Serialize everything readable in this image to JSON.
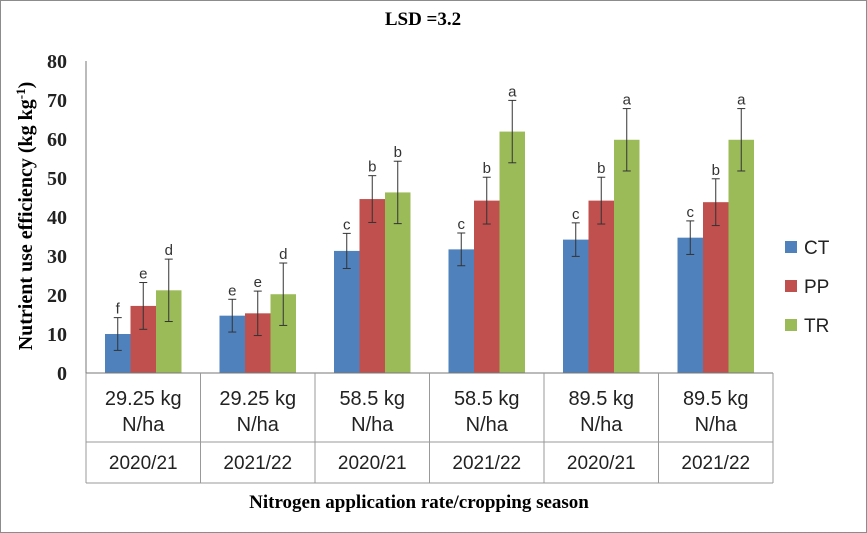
{
  "chart_data": {
    "type": "bar",
    "title": "LSD =3.2",
    "xlabel": "Nitrogen application rate/cropping season",
    "ylabel": "Nutrient use efficiency (kg kg",
    "ylabel_sup": "-1",
    "ylabel_close": ")",
    "ylim": [
      0,
      80
    ],
    "yticks": [
      "0",
      "10",
      "20",
      "30",
      "40",
      "50",
      "60",
      "70",
      "80"
    ],
    "grid": false,
    "legend_position": "right",
    "categories": [
      {
        "line1": "29.25 kg",
        "line2": "N/ha",
        "season": "2020/21"
      },
      {
        "line1": "29.25 kg",
        "line2": "N/ha",
        "season": "2021/22"
      },
      {
        "line1": "58.5 kg",
        "line2": "N/ha",
        "season": "2020/21"
      },
      {
        "line1": "58.5 kg",
        "line2": "N/ha",
        "season": "2021/22"
      },
      {
        "line1": "89.5 kg",
        "line2": "N/ha",
        "season": "2020/21"
      },
      {
        "line1": "89.5 kg",
        "line2": "N/ha",
        "season": "2021/22"
      }
    ],
    "series": [
      {
        "name": "CT",
        "color": "#4f81bd",
        "values": [
          10.0,
          14.7,
          31.3,
          31.7,
          34.2,
          34.7
        ],
        "errors": [
          4.2,
          4.2,
          4.5,
          4.2,
          4.3,
          4.3
        ],
        "letters": [
          "f",
          "e",
          "c",
          "c",
          "c",
          "c"
        ]
      },
      {
        "name": "PP",
        "color": "#c0504d",
        "values": [
          17.2,
          15.3,
          44.6,
          44.2,
          44.2,
          43.8
        ],
        "errors": [
          6.0,
          5.7,
          6.0,
          6.0,
          6.0,
          6.0
        ],
        "letters": [
          "e",
          "e",
          "b",
          "b",
          "b",
          "b"
        ]
      },
      {
        "name": "TR",
        "color": "#9bbb59",
        "values": [
          21.2,
          20.2,
          46.3,
          61.9,
          59.8,
          59.8
        ],
        "errors": [
          8.0,
          8.0,
          8.0,
          8.0,
          8.0,
          8.0
        ],
        "letters": [
          "d",
          "d",
          "b",
          "a",
          "a",
          "a"
        ]
      }
    ]
  }
}
